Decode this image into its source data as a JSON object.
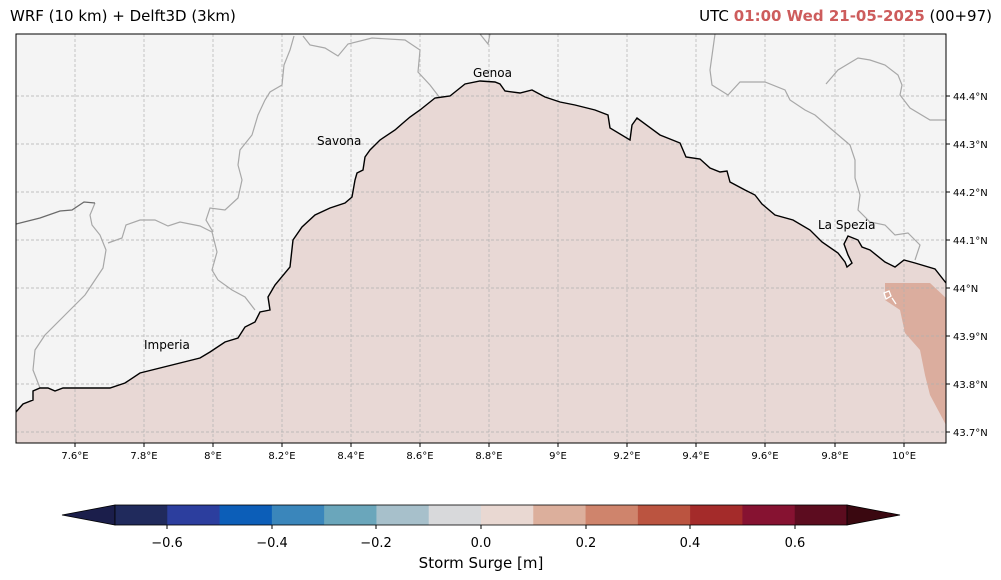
{
  "header": {
    "title_left": "WRF (10 km) + Delft3D (3km)",
    "utc_label": "UTC",
    "datetime": "01:00 Wed 21-05-2025",
    "forecast_offset": "(00+97)"
  },
  "map": {
    "cities": [
      "Genoa",
      "Savona",
      "La Spezia",
      "Imperia"
    ],
    "lon_ticks": [
      "7.6°E",
      "7.8°E",
      "8°E",
      "8.2°E",
      "8.4°E",
      "8.6°E",
      "8.8°E",
      "9°E",
      "9.2°E",
      "9.4°E",
      "9.6°E",
      "9.8°E",
      "10°E"
    ],
    "lat_ticks": [
      "44.4°N",
      "44.3°N",
      "44.2°N",
      "44.1°N",
      "44°N",
      "43.9°N",
      "43.8°N",
      "43.7°N"
    ]
  },
  "colorbar": {
    "label": "Storm Surge [m]",
    "tick_labels": [
      "−0.6",
      "−0.4",
      "−0.2",
      "0.0",
      "0.2",
      "0.4",
      "0.6"
    ],
    "colors": [
      "#1b1e4b",
      "#202a5c",
      "#2c3e9e",
      "#0c5eb8",
      "#3a86bb",
      "#6aa6bb",
      "#a7c0cb",
      "#d8d9db",
      "#e9d8d2",
      "#dcaf9c",
      "#cf846c",
      "#bb5440",
      "#a42b2a",
      "#861231",
      "#5c0c1f",
      "#3a0810"
    ]
  },
  "colors": {
    "land": "#f4f4f4",
    "sea_surge": "#e8d8d5",
    "surge_high": "#dbad9e",
    "date_highlight": "#cd5c5c"
  }
}
